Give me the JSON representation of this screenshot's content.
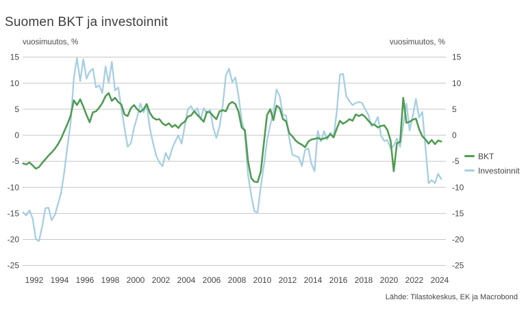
{
  "title": "Suomen BKT ja investoinnit",
  "axis_unit_left": "vuosimuutos, %",
  "axis_unit_right": "vuosimuutos, %",
  "source": "Lähde: Tilastokeskus, EK ja Macrobond",
  "colors": {
    "bkt": "#4f9b52",
    "investoinnit": "#a5cee3",
    "gridline": "#c4c4c4",
    "text": "#454545",
    "title_text": "#3d3d3d"
  },
  "legend": [
    {
      "label": "BKT",
      "color": "#4f9b52"
    },
    {
      "label": "Investoinnit",
      "color": "#a5cee3"
    }
  ],
  "chart_data": {
    "type": "line",
    "title": "Suomen BKT ja investoinnit",
    "xlabel": "",
    "ylabel": "vuosimuutos, %",
    "ylim": [
      -25,
      15
    ],
    "yticks": [
      15,
      10,
      5,
      0,
      -5,
      -10,
      -15,
      -20,
      -25
    ],
    "xticks": [
      1992,
      1994,
      1996,
      1998,
      2000,
      2002,
      2004,
      2006,
      2008,
      2010,
      2012,
      2014,
      2016,
      2018,
      2020,
      2022,
      2024
    ],
    "x_start": 1991.125,
    "x_step": 0.25,
    "x_unit": "year (quarterly data)",
    "grid": "horizontal",
    "legend_position": "right",
    "source": "Lähde: Tilastokeskus, EK ja Macrobond",
    "series": [
      {
        "name": "BKT",
        "color": "#4f9b52",
        "values": [
          -5.4,
          -5.6,
          -5.2,
          -5.8,
          -6.4,
          -6.1,
          -5.3,
          -4.6,
          -3.9,
          -3.3,
          -2.6,
          -1.7,
          -0.6,
          0.8,
          2.2,
          3.8,
          6.7,
          5.8,
          6.9,
          5.5,
          3.9,
          2.5,
          4.4,
          4.6,
          5.3,
          6.2,
          7.5,
          8.1,
          6.6,
          7.2,
          6.4,
          5.9,
          4.0,
          3.7,
          5.2,
          5.8,
          5.0,
          4.5,
          5.0,
          6.0,
          4.3,
          3.4,
          3.0,
          3.1,
          2.3,
          1.9,
          2.3,
          1.6,
          2.0,
          1.4,
          2.2,
          2.6,
          3.6,
          3.8,
          4.6,
          3.9,
          3.3,
          2.6,
          4.5,
          4.4,
          3.7,
          3.1,
          4.6,
          4.8,
          4.6,
          6.0,
          6.4,
          6.0,
          4.5,
          1.5,
          1.0,
          -5.0,
          -8.2,
          -8.9,
          -9.0,
          -7.0,
          -1.5,
          3.9,
          5.0,
          2.9,
          5.7,
          5.2,
          3.1,
          2.7,
          0.4,
          -0.2,
          -1.0,
          -1.5,
          -1.8,
          -2.3,
          -1.2,
          -0.8,
          -0.7,
          -0.5,
          -0.8,
          -0.6,
          -0.4,
          0.2,
          -0.4,
          1.3,
          2.8,
          2.2,
          2.6,
          3.1,
          2.8,
          4.0,
          3.7,
          4.0,
          3.5,
          2.8,
          2.1,
          2.0,
          1.5,
          1.8,
          1.9,
          1.0,
          -1.0,
          -6.9,
          -1.5,
          -1.3,
          7.2,
          2.4,
          2.6,
          3.0,
          3.2,
          1.2,
          -0.2,
          -0.8,
          -1.6,
          -0.9,
          -1.7,
          -1.0,
          -1.2
        ]
      },
      {
        "name": "Investoinnit",
        "color": "#a5cee3",
        "values": [
          -14.8,
          -15.4,
          -14.4,
          -16.0,
          -19.9,
          -20.3,
          -17.5,
          -14.0,
          -13.9,
          -16.3,
          -15.3,
          -13.2,
          -11.0,
          -7.0,
          -2.0,
          2.5,
          11.0,
          14.8,
          10.4,
          14.6,
          10.9,
          12.2,
          12.8,
          9.2,
          9.6,
          8.1,
          13.2,
          10.1,
          14.1,
          8.6,
          9.2,
          5.2,
          1.4,
          -2.2,
          -1.5,
          1.4,
          3.5,
          6.1,
          4.4,
          5.8,
          1.4,
          -1.5,
          -3.9,
          -5.2,
          -5.9,
          -3.4,
          -4.7,
          -2.6,
          -1.2,
          0.0,
          -1.6,
          1.7,
          5.0,
          5.6,
          4.5,
          5.2,
          3.0,
          5.2,
          4.2,
          4.9,
          1.5,
          -0.5,
          1.7,
          5.7,
          11.5,
          12.8,
          10.2,
          11.1,
          7.5,
          2.9,
          0.3,
          -7.7,
          -11.5,
          -14.6,
          -14.8,
          -9.9,
          -5.7,
          -1.0,
          2.0,
          4.5,
          8.8,
          7.5,
          3.9,
          3.8,
          -0.5,
          -3.7,
          -4.0,
          -4.2,
          -5.9,
          -2.8,
          -2.5,
          -5.5,
          -6.9,
          0.8,
          -1.2,
          0.8,
          -0.8,
          0.5,
          -0.3,
          4.5,
          11.6,
          11.8,
          7.5,
          6.5,
          5.8,
          6.2,
          6.4,
          6.2,
          5.0,
          3.9,
          1.7,
          2.3,
          3.5,
          -0.1,
          -1.1,
          -0.9,
          -2.5,
          -2.0,
          -0.6,
          -2.2,
          2.0,
          6.1,
          0.9,
          3.7,
          7.0,
          3.4,
          4.5,
          -2.3,
          -9.2,
          -8.6,
          -9.2,
          -7.4,
          -8.4
        ]
      }
    ]
  }
}
